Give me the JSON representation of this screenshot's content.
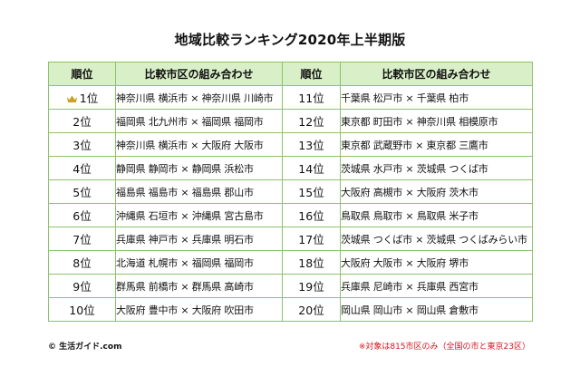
{
  "title": "地域比較ランキング2020年上半期版",
  "headers": {
    "rank": "順位",
    "pair": "比較市区の組み合わせ"
  },
  "left": [
    {
      "rank": "1位",
      "pair": "神奈川県 横浜市 × 神奈川県 川崎市",
      "icon": "crown-icon"
    },
    {
      "rank": "2位",
      "pair": "福岡県 北九州市 × 福岡県 福岡市"
    },
    {
      "rank": "3位",
      "pair": "神奈川県 横浜市 × 大阪府 大阪市"
    },
    {
      "rank": "4位",
      "pair": "静岡県 静岡市 × 静岡県 浜松市"
    },
    {
      "rank": "5位",
      "pair": "福島県 福島市 × 福島県 郡山市"
    },
    {
      "rank": "6位",
      "pair": "沖縄県 石垣市 × 沖縄県 宮古島市"
    },
    {
      "rank": "7位",
      "pair": "兵庫県 神戸市 × 兵庫県 明石市"
    },
    {
      "rank": "8位",
      "pair": "北海道 札幌市 × 福岡県 福岡市"
    },
    {
      "rank": "9位",
      "pair": "群馬県 前橋市 × 群馬県 高崎市"
    },
    {
      "rank": "10位",
      "pair": "大阪府 豊中市 × 大阪府 吹田市"
    }
  ],
  "right": [
    {
      "rank": "11位",
      "pair": "千葉県 松戸市 × 千葉県 柏市"
    },
    {
      "rank": "12位",
      "pair": "東京都 町田市 × 神奈川県 相模原市"
    },
    {
      "rank": "13位",
      "pair": "東京都 武蔵野市 × 東京都 三鷹市"
    },
    {
      "rank": "14位",
      "pair": "茨城県 水戸市 × 茨城県 つくば市"
    },
    {
      "rank": "15位",
      "pair": "大阪府 高槻市 × 大阪府 茨木市"
    },
    {
      "rank": "16位",
      "pair": "鳥取県 鳥取市 × 鳥取県 米子市"
    },
    {
      "rank": "17位",
      "pair": "茨城県 つくば市 × 茨城県 つくばみらい市"
    },
    {
      "rank": "18位",
      "pair": "大阪府 大阪市 × 大阪府 堺市"
    },
    {
      "rank": "19位",
      "pair": "兵庫県 尼崎市 × 兵庫県 西宮市"
    },
    {
      "rank": "20位",
      "pair": "岡山県 岡山市 × 岡山県 倉敷市"
    }
  ],
  "footer": {
    "copyright": "© 生活ガイド.com",
    "note": "※対象は815市区のみ（全国の市と東京23区）"
  },
  "colors": {
    "border": "#8cc26a",
    "header_bg": "#d9efc7",
    "crown": "#c9a227",
    "note": "#d6141e"
  }
}
